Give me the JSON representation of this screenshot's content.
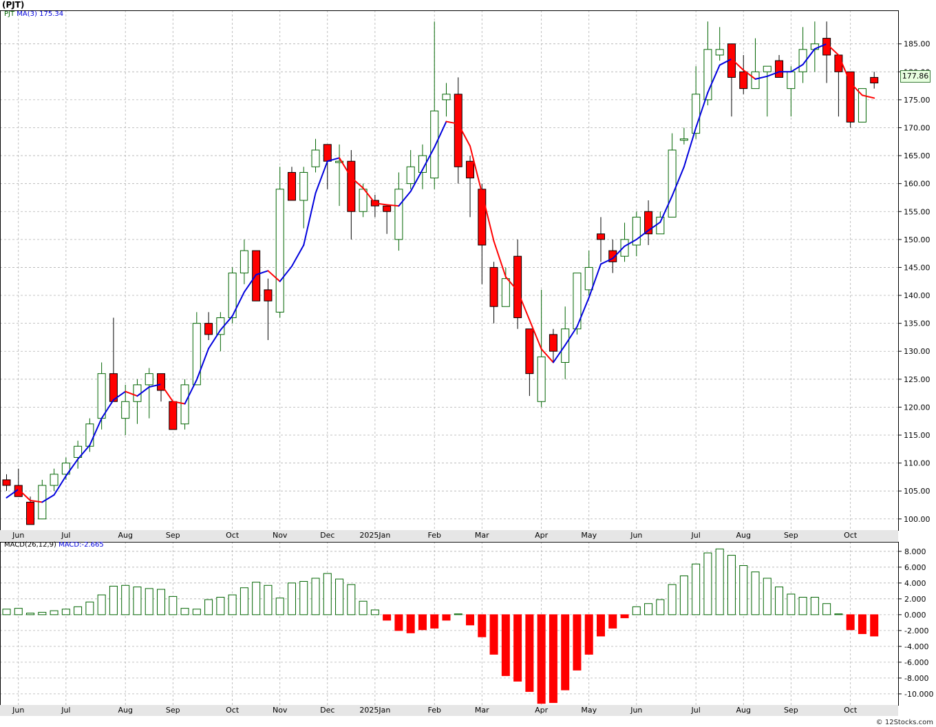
{
  "title": "(PJT)",
  "footer": "© 12Stocks.com",
  "colors": {
    "up": "#006400",
    "down": "#ff0000",
    "ma_up": "#0000dd",
    "ma_down": "#ff0000",
    "grid": "#b0b0b0"
  },
  "price_legend": {
    "symbol": "PJT",
    "ma_label": "MA(3)",
    "ma_value": "175.34"
  },
  "macd_legend": {
    "label": "MACD(26,12,9)",
    "value_text": "MACD:-2.665"
  },
  "last_price": "177.86",
  "x_labels": [
    "Jun",
    "Jul",
    "Aug",
    "Sep",
    "Oct",
    "Nov",
    "Dec",
    "2025Jan",
    "Feb",
    "Mar",
    "Apr",
    "May",
    "Jun",
    "Jul",
    "Aug",
    "Sep",
    "Oct"
  ],
  "chart_data": [
    {
      "type": "candlestick",
      "title": "(PJT)",
      "ylim": [
        98,
        191
      ],
      "y_ticks": [
        "100.00",
        "105.00",
        "110.00",
        "115.00",
        "120.00",
        "125.00",
        "130.00",
        "135.00",
        "140.00",
        "145.00",
        "150.00",
        "155.00",
        "160.00",
        "165.00",
        "170.00",
        "175.00",
        "180.00",
        "185.00"
      ],
      "grid": true,
      "candles": [
        {
          "o": 107,
          "h": 108,
          "l": 105,
          "c": 106
        },
        {
          "o": 106,
          "h": 109,
          "l": 104,
          "c": 104
        },
        {
          "o": 103,
          "h": 104,
          "l": 99,
          "c": 99
        },
        {
          "o": 100,
          "h": 107,
          "l": 100,
          "c": 106
        },
        {
          "o": 106,
          "h": 109,
          "l": 105,
          "c": 108
        },
        {
          "o": 108,
          "h": 111,
          "l": 107,
          "c": 110
        },
        {
          "o": 111,
          "h": 114,
          "l": 109,
          "c": 113
        },
        {
          "o": 113,
          "h": 118,
          "l": 112,
          "c": 117
        },
        {
          "o": 118,
          "h": 128,
          "l": 116,
          "c": 126
        },
        {
          "o": 126,
          "h": 136,
          "l": 121,
          "c": 121
        },
        {
          "o": 118,
          "h": 124,
          "l": 115,
          "c": 121
        },
        {
          "o": 121,
          "h": 125,
          "l": 117,
          "c": 124
        },
        {
          "o": 124,
          "h": 127,
          "l": 118,
          "c": 126
        },
        {
          "o": 126,
          "h": 126,
          "l": 121,
          "c": 123
        },
        {
          "o": 121,
          "h": 121,
          "l": 116,
          "c": 116
        },
        {
          "o": 117,
          "h": 125,
          "l": 116,
          "c": 124
        },
        {
          "o": 124,
          "h": 137,
          "l": 124,
          "c": 135
        },
        {
          "o": 135,
          "h": 137,
          "l": 132,
          "c": 133
        },
        {
          "o": 133,
          "h": 137,
          "l": 130,
          "c": 136
        },
        {
          "o": 136,
          "h": 145,
          "l": 135,
          "c": 144
        },
        {
          "o": 144,
          "h": 150,
          "l": 142,
          "c": 148
        },
        {
          "o": 148,
          "h": 148,
          "l": 139,
          "c": 139
        },
        {
          "o": 141,
          "h": 143,
          "l": 132,
          "c": 139
        },
        {
          "o": 137,
          "h": 163,
          "l": 136,
          "c": 159
        },
        {
          "o": 162,
          "h": 163,
          "l": 157,
          "c": 157
        },
        {
          "o": 157,
          "h": 163,
          "l": 152,
          "c": 162
        },
        {
          "o": 163,
          "h": 168,
          "l": 162,
          "c": 166
        },
        {
          "o": 167,
          "h": 167,
          "l": 159,
          "c": 164
        },
        {
          "o": 164,
          "h": 167,
          "l": 156,
          "c": 164
        },
        {
          "o": 164,
          "h": 166,
          "l": 150,
          "c": 155
        },
        {
          "o": 155,
          "h": 160,
          "l": 154,
          "c": 159
        },
        {
          "o": 157,
          "h": 158,
          "l": 154,
          "c": 156
        },
        {
          "o": 156,
          "h": 156,
          "l": 151,
          "c": 155
        },
        {
          "o": 150,
          "h": 162,
          "l": 148,
          "c": 159
        },
        {
          "o": 160,
          "h": 166,
          "l": 159,
          "c": 163
        },
        {
          "o": 162,
          "h": 167,
          "l": 159,
          "c": 165
        },
        {
          "o": 161,
          "h": 189,
          "l": 159,
          "c": 173
        },
        {
          "o": 175,
          "h": 178,
          "l": 172,
          "c": 176
        },
        {
          "o": 176,
          "h": 179,
          "l": 160,
          "c": 163
        },
        {
          "o": 164,
          "h": 165,
          "l": 154,
          "c": 161
        },
        {
          "o": 159,
          "h": 160,
          "l": 142,
          "c": 149
        },
        {
          "o": 145,
          "h": 146,
          "l": 135,
          "c": 138
        },
        {
          "o": 138,
          "h": 145,
          "l": 138,
          "c": 143
        },
        {
          "o": 147,
          "h": 150,
          "l": 134,
          "c": 136
        },
        {
          "o": 134,
          "h": 134,
          "l": 122,
          "c": 126
        },
        {
          "o": 121,
          "h": 141,
          "l": 120,
          "c": 129
        },
        {
          "o": 133,
          "h": 134,
          "l": 128,
          "c": 130
        },
        {
          "o": 128,
          "h": 138,
          "l": 125,
          "c": 134
        },
        {
          "o": 134,
          "h": 144,
          "l": 133,
          "c": 144
        },
        {
          "o": 141,
          "h": 148,
          "l": 140,
          "c": 145
        },
        {
          "o": 151,
          "h": 154,
          "l": 146,
          "c": 150
        },
        {
          "o": 148,
          "h": 150,
          "l": 144,
          "c": 146
        },
        {
          "o": 147,
          "h": 153,
          "l": 146,
          "c": 150
        },
        {
          "o": 149,
          "h": 155,
          "l": 147,
          "c": 154
        },
        {
          "o": 155,
          "h": 157,
          "l": 149,
          "c": 151
        },
        {
          "o": 151,
          "h": 155,
          "l": 151,
          "c": 154
        },
        {
          "o": 154,
          "h": 169,
          "l": 154,
          "c": 166
        },
        {
          "o": 168,
          "h": 170,
          "l": 167,
          "c": 168
        },
        {
          "o": 169,
          "h": 181,
          "l": 168,
          "c": 176
        },
        {
          "o": 175,
          "h": 189,
          "l": 174,
          "c": 184
        },
        {
          "o": 183,
          "h": 188,
          "l": 182,
          "c": 184
        },
        {
          "o": 185,
          "h": 185,
          "l": 172,
          "c": 179
        },
        {
          "o": 180,
          "h": 183,
          "l": 176,
          "c": 177
        },
        {
          "o": 177,
          "h": 186,
          "l": 177,
          "c": 180
        },
        {
          "o": 180,
          "h": 181,
          "l": 172,
          "c": 181
        },
        {
          "o": 182,
          "h": 183,
          "l": 179,
          "c": 179
        },
        {
          "o": 177,
          "h": 181,
          "l": 172,
          "c": 180
        },
        {
          "o": 180,
          "h": 188,
          "l": 178,
          "c": 184
        },
        {
          "o": 184,
          "h": 189,
          "l": 180,
          "c": 185
        },
        {
          "o": 186,
          "h": 189,
          "l": 178,
          "c": 183
        },
        {
          "o": 183,
          "h": 183,
          "l": 172,
          "c": 180
        },
        {
          "o": 180,
          "h": 180,
          "l": 170,
          "c": 171
        },
        {
          "o": 171,
          "h": 177,
          "l": 171,
          "c": 177
        },
        {
          "o": 179,
          "h": 180,
          "l": 177,
          "c": 178
        }
      ],
      "ma3": [
        103.8,
        105.3,
        103.3,
        103.0,
        104.3,
        107.7,
        110.7,
        113.2,
        118.0,
        121.3,
        122.8,
        122.0,
        123.6,
        124.1,
        121.0,
        120.6,
        124.9,
        130.5,
        133.8,
        136.3,
        140.6,
        143.7,
        144.4,
        142.5,
        145.2,
        149.0,
        158.3,
        164.0,
        164.6,
        161.1,
        159.2,
        156.5,
        156.2,
        156.0,
        158.6,
        162.5,
        166.5,
        171.1,
        170.7,
        166.7,
        158.3,
        149.7,
        143.3,
        140.8,
        135.6,
        130.4,
        128.0,
        131.1,
        134.4,
        139.6,
        145.6,
        146.6,
        148.8,
        150.0,
        151.6,
        153.1,
        157.8,
        163.0,
        170.0,
        176.3,
        181.2,
        182.3,
        180.3,
        178.7,
        179.2,
        180.0,
        180.0,
        181.3,
        184.1,
        185.0,
        183.0,
        178.0,
        175.8,
        175.3
      ]
    },
    {
      "type": "bar",
      "title": "MACD(26,12,9)",
      "ylim": [
        -11.4,
        9.2
      ],
      "y_ticks": [
        "8.000",
        "6.000",
        "4.000",
        "2.000",
        "0.000",
        "-2.000",
        "-4.000",
        "-6.000",
        "-8.000",
        "-10.000"
      ],
      "grid": true,
      "values": [
        0.7,
        0.8,
        0.2,
        0.3,
        0.5,
        0.7,
        1.0,
        1.6,
        2.5,
        3.6,
        3.7,
        3.5,
        3.3,
        3.2,
        2.3,
        0.8,
        0.7,
        1.9,
        2.2,
        2.5,
        3.4,
        4.1,
        3.7,
        2.1,
        4.0,
        4.2,
        4.6,
        5.2,
        4.5,
        3.8,
        1.7,
        0.6,
        -0.7,
        -2.0,
        -2.3,
        -1.9,
        -1.7,
        -0.7,
        0.1,
        -1.3,
        -2.8,
        -5.0,
        -7.7,
        -8.4,
        -9.7,
        -11.2,
        -11.1,
        -9.5,
        -7.0,
        -5.0,
        -2.7,
        -1.7,
        -0.4,
        1.0,
        1.4,
        1.9,
        3.8,
        4.9,
        6.4,
        7.8,
        8.3,
        7.5,
        6.2,
        5.4,
        4.6,
        3.5,
        2.6,
        2.2,
        2.2,
        1.4,
        0.1,
        -1.9,
        -2.4,
        -2.7
      ]
    }
  ]
}
